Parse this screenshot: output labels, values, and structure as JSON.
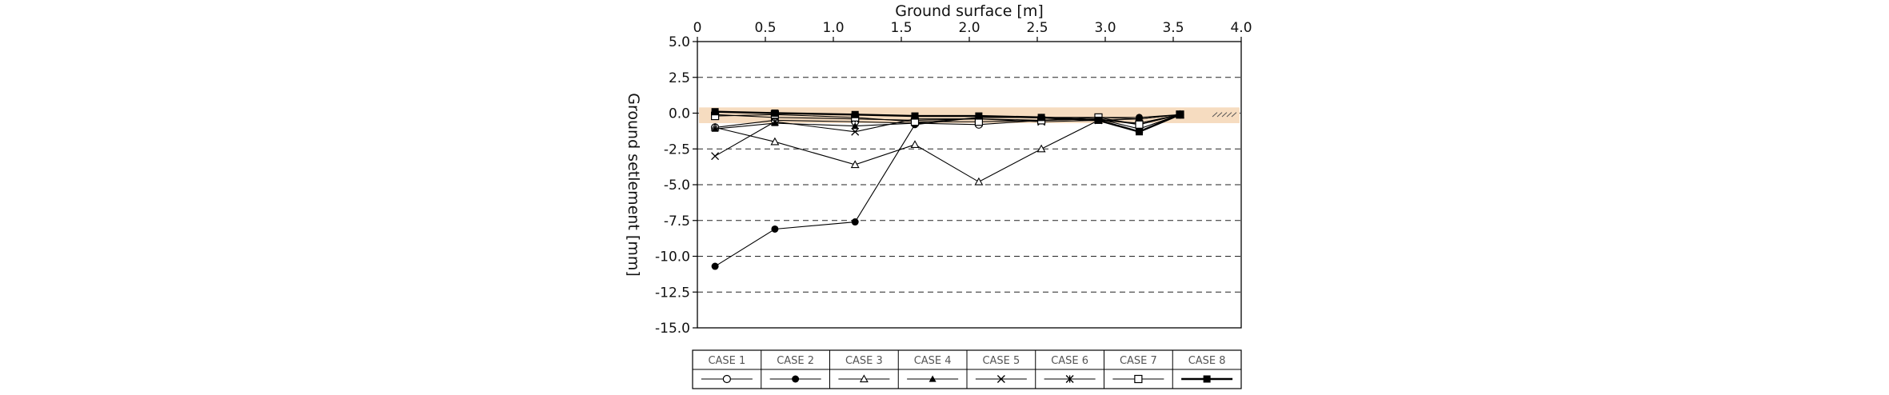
{
  "chart_data": {
    "type": "line",
    "title": "",
    "xlabel": "Ground surface [m]",
    "ylabel": "Ground setlement [mm]",
    "xlim": [
      0,
      4.0
    ],
    "ylim": [
      -15.0,
      5.0
    ],
    "x_axis_position": "top",
    "grid": "horizontal dashed",
    "x_ticks": [
      "0",
      "0.5",
      "1.0",
      "1.5",
      "2.0",
      "2.5",
      "3.0",
      "3.5",
      "4.0"
    ],
    "y_ticks": [
      "5.0",
      "2.5",
      "0.0",
      "-2.5",
      "-5.0",
      "-7.5",
      "-10.0",
      "-12.5",
      "-15.0"
    ],
    "ground_band": {
      "top": 0.4,
      "bottom": -0.7,
      "color": "#f6dcc0"
    },
    "x": [
      0.13,
      0.57,
      1.16,
      1.6,
      2.07,
      2.53,
      2.95,
      3.25,
      3.55
    ],
    "series": [
      {
        "name": "CASE 1",
        "marker": "circle-open",
        "values": [
          -1.0,
          -0.5,
          -0.6,
          -0.7,
          -0.8,
          -0.5,
          -0.4,
          -0.8,
          -0.1
        ]
      },
      {
        "name": "CASE 2",
        "marker": "circle-filled",
        "values": [
          -10.7,
          -8.1,
          -7.6,
          -0.8,
          -0.3,
          -0.3,
          -0.3,
          -0.3,
          -0.1
        ]
      },
      {
        "name": "CASE 3",
        "marker": "triangle-open",
        "values": [
          -1.0,
          -2.0,
          -3.6,
          -2.2,
          -4.8,
          -2.5,
          -0.5,
          -0.4,
          -0.1
        ]
      },
      {
        "name": "CASE 4",
        "marker": "triangle-filled",
        "values": [
          -1.1,
          -0.7,
          -0.9,
          -0.7,
          -0.3,
          -0.3,
          -0.3,
          -0.4,
          -0.1
        ]
      },
      {
        "name": "CASE 5",
        "marker": "x",
        "values": [
          -3.0,
          -0.6,
          -1.3,
          -0.4,
          -0.4,
          -0.6,
          -0.5,
          -0.7,
          -0.1
        ]
      },
      {
        "name": "CASE 6",
        "marker": "star",
        "values": [
          -0.1,
          -0.3,
          -0.4,
          -0.5,
          -0.4,
          -0.5,
          -0.4,
          -1.1,
          -0.1
        ]
      },
      {
        "name": "CASE 7",
        "marker": "square-open",
        "values": [
          -0.2,
          -0.1,
          -0.3,
          -0.6,
          -0.6,
          -0.5,
          -0.3,
          -0.8,
          -0.1
        ]
      },
      {
        "name": "CASE 8",
        "marker": "square-filled",
        "values": [
          0.1,
          0.0,
          -0.1,
          -0.2,
          -0.2,
          -0.3,
          -0.5,
          -1.3,
          -0.1
        ]
      }
    ],
    "legend": {
      "position": "bottom-center",
      "labels": [
        "CASE 1",
        "CASE 2",
        "CASE 3",
        "CASE 4",
        "CASE 5",
        "CASE 6",
        "CASE 7",
        "CASE 8"
      ]
    }
  }
}
